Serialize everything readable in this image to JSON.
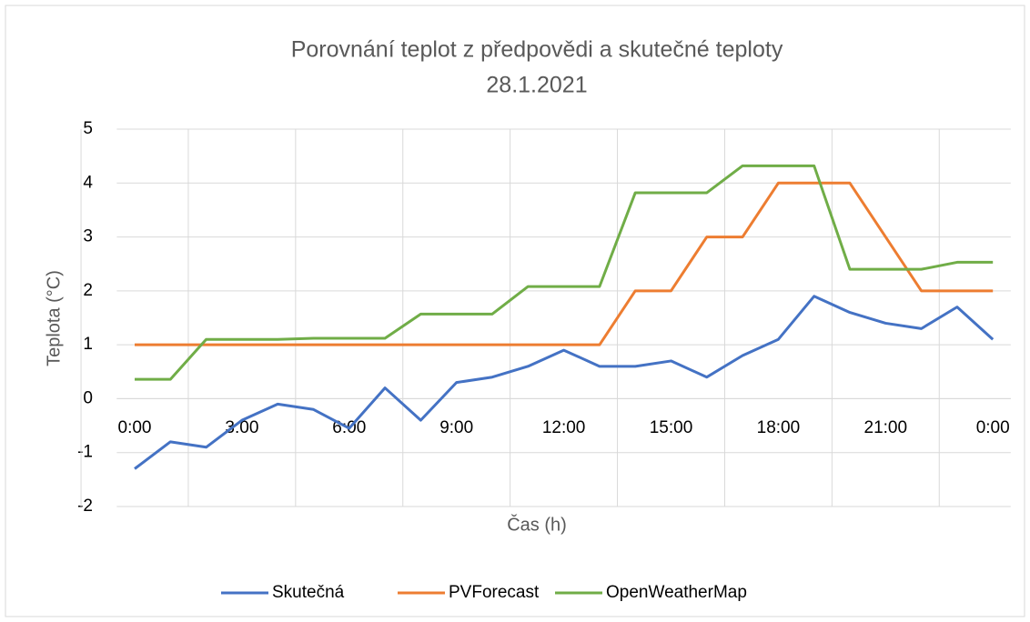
{
  "chart_data": {
    "type": "line",
    "title": "Porovnání teplot z předpovědi a skutečné teploty",
    "subtitle": "28.1.2021",
    "x_label": "Čas (h)",
    "y_label": "Teplota (°C)",
    "categories": [
      "0:00",
      null,
      null,
      "3:00",
      null,
      null,
      "6:00",
      null,
      null,
      "9:00",
      null,
      null,
      "12:00",
      null,
      null,
      "15:00",
      null,
      null,
      "18:00",
      null,
      null,
      "21:00",
      null,
      null,
      "0:00"
    ],
    "series": [
      {
        "name": "Skutečná",
        "color": "#4472c4",
        "values": [
          -1.3,
          -0.8,
          -0.9,
          -0.4,
          -0.1,
          -0.2,
          -0.55,
          0.2,
          -0.4,
          0.3,
          0.4,
          0.6,
          0.9,
          0.6,
          0.6,
          0.7,
          0.4,
          0.8,
          1.1,
          1.9,
          1.6,
          1.4,
          1.3,
          1.7,
          1.1
        ]
      },
      {
        "name": "PVForecast",
        "color": "#ed7d31",
        "values": [
          1,
          1,
          1,
          1,
          1,
          1,
          1,
          1,
          1,
          1,
          1,
          1,
          1,
          1,
          2,
          2,
          3,
          3,
          4,
          4,
          4,
          3,
          2,
          2,
          2
        ]
      },
      {
        "name": "OpenWeatherMap",
        "color": "#70ad47",
        "values": [
          0.36,
          0.36,
          1.1,
          1.1,
          1.1,
          1.12,
          1.12,
          1.12,
          1.57,
          1.57,
          1.57,
          2.08,
          2.08,
          2.08,
          3.82,
          3.82,
          3.82,
          4.32,
          4.32,
          4.32,
          2.4,
          2.4,
          2.4,
          2.53,
          2.53
        ]
      }
    ],
    "ylim": [
      -2,
      5
    ],
    "yticks": [
      -2,
      -1,
      0,
      1,
      2,
      3,
      4,
      5
    ],
    "grid": true,
    "legend": "bottom"
  }
}
